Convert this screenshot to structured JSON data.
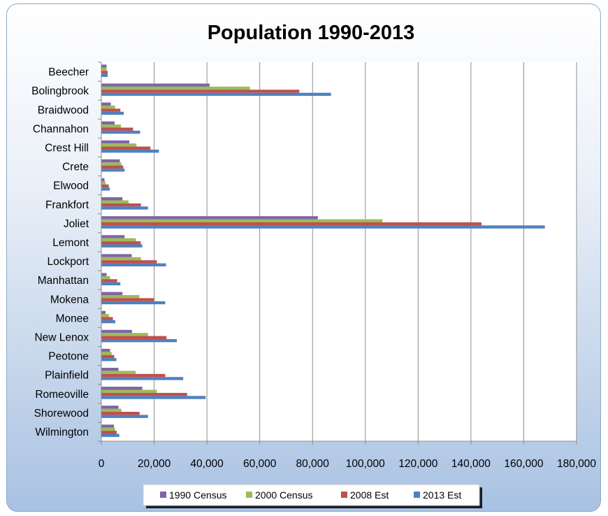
{
  "chart_data": {
    "type": "bar",
    "orientation": "horizontal",
    "title": "Population 1990-2013",
    "xlabel": "",
    "ylabel": "",
    "xlim": [
      0,
      180000
    ],
    "ticks": [
      0,
      20000,
      40000,
      60000,
      80000,
      100000,
      120000,
      140000,
      160000,
      180000
    ],
    "tick_labels": [
      "0",
      "20,000",
      "40,000",
      "60,000",
      "80,000",
      "100,000",
      "120,000",
      "140,000",
      "160,000",
      "180,000"
    ],
    "grid": "vertical",
    "legend_position": "bottom",
    "categories": [
      "Beecher",
      "Bolingbrook",
      "Braidwood",
      "Channahon",
      "Crest Hill",
      "Crete",
      "Elwood",
      "Frankfort",
      "Joliet",
      "Lemont",
      "Lockport",
      "Manhattan",
      "Mokena",
      "Monee",
      "New Lenox",
      "Peotone",
      "Plainfield",
      "Romeoville",
      "Shorewood",
      "Wilmington"
    ],
    "series": [
      {
        "name": "1990 Census",
        "color": "#8064a2",
        "values": [
          2000,
          41000,
          3600,
          5000,
          10600,
          7000,
          1200,
          8000,
          82000,
          8800,
          11500,
          2000,
          8000,
          1600,
          11600,
          3300,
          6500,
          15500,
          6500,
          4800
        ]
      },
      {
        "name": "2000 Census",
        "color": "#9bbb59",
        "values": [
          2000,
          56300,
          5200,
          7400,
          13300,
          7600,
          1600,
          10300,
          106500,
          13100,
          15000,
          3300,
          14400,
          2900,
          17700,
          3900,
          13000,
          21000,
          7600,
          5200
        ]
      },
      {
        "name": "2008 Est",
        "color": "#c0504d",
        "values": [
          2400,
          75000,
          7200,
          12000,
          18600,
          8300,
          2800,
          15000,
          144000,
          14900,
          21000,
          6000,
          20000,
          4400,
          24700,
          4900,
          24200,
          32500,
          14500,
          5800
        ]
      },
      {
        "name": "2013 Est",
        "color": "#4f81bd",
        "values": [
          2400,
          87000,
          8500,
          14700,
          21800,
          8800,
          3200,
          17700,
          168000,
          15500,
          24500,
          7200,
          24200,
          5300,
          28600,
          5700,
          31000,
          39500,
          17700,
          6800
        ]
      }
    ]
  }
}
